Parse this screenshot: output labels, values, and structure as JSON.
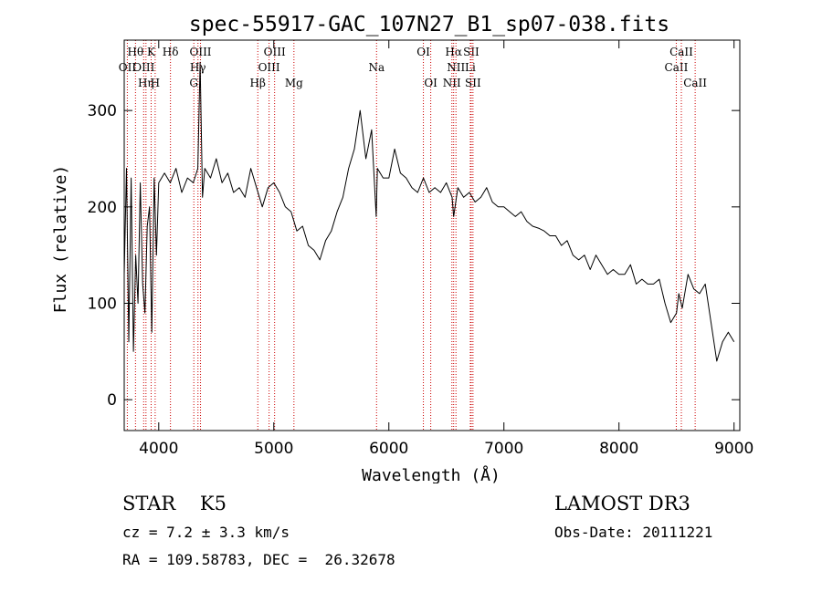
{
  "chart_data": {
    "type": "line",
    "title": "spec-55917-GAC_107N27_B1_sp07-038.fits",
    "xlabel": "Wavelength (Å)",
    "ylabel": "Flux (relative)",
    "xlim": [
      3700,
      9050
    ],
    "ylim": [
      -32,
      373
    ],
    "xticks": [
      4000,
      5000,
      6000,
      7000,
      8000,
      9000
    ],
    "yticks": [
      0,
      100,
      200,
      300
    ],
    "grid": false,
    "series": [
      {
        "x": [
          3700,
          3720,
          3740,
          3760,
          3780,
          3800,
          3820,
          3840,
          3860,
          3880,
          3900,
          3920,
          3940,
          3960,
          3980,
          4000,
          4050,
          4100,
          4150,
          4200,
          4250,
          4300,
          4340,
          4360,
          4380,
          4400,
          4450,
          4500,
          4550,
          4600,
          4650,
          4700,
          4750,
          4800,
          4850,
          4900,
          4950,
          5000,
          5050,
          5100,
          5150,
          5200,
          5250,
          5300,
          5350,
          5400,
          5450,
          5500,
          5550,
          5600,
          5650,
          5700,
          5750,
          5800,
          5850,
          5890,
          5900,
          5950,
          6000,
          6050,
          6100,
          6150,
          6200,
          6250,
          6300,
          6350,
          6400,
          6450,
          6500,
          6550,
          6563,
          6600,
          6650,
          6700,
          6750,
          6800,
          6850,
          6900,
          6950,
          7000,
          7050,
          7100,
          7150,
          7200,
          7250,
          7300,
          7350,
          7400,
          7450,
          7500,
          7550,
          7600,
          7650,
          7700,
          7750,
          7800,
          7850,
          7900,
          7950,
          8000,
          8050,
          8100,
          8150,
          8200,
          8250,
          8300,
          8350,
          8400,
          8450,
          8500,
          8520,
          8550,
          8600,
          8650,
          8700,
          8750,
          8800,
          8850,
          8900,
          8950,
          9000
        ],
        "y": [
          130,
          240,
          60,
          230,
          50,
          150,
          100,
          225,
          120,
          90,
          180,
          200,
          70,
          230,
          150,
          225,
          235,
          225,
          240,
          215,
          230,
          225,
          240,
          350,
          210,
          240,
          230,
          250,
          225,
          235,
          215,
          220,
          210,
          240,
          220,
          200,
          220,
          225,
          215,
          200,
          195,
          175,
          180,
          160,
          155,
          145,
          165,
          175,
          195,
          210,
          240,
          260,
          300,
          250,
          280,
          190,
          240,
          230,
          230,
          260,
          235,
          230,
          220,
          215,
          230,
          215,
          220,
          215,
          225,
          210,
          190,
          220,
          210,
          215,
          205,
          210,
          220,
          205,
          200,
          200,
          195,
          190,
          195,
          185,
          180,
          178,
          175,
          170,
          170,
          160,
          165,
          150,
          145,
          150,
          135,
          150,
          140,
          130,
          135,
          130,
          130,
          140,
          120,
          125,
          120,
          120,
          125,
          100,
          80,
          90,
          110,
          95,
          130,
          115,
          110,
          120,
          80,
          40,
          60,
          70,
          60
        ]
      }
    ],
    "lines": [
      {
        "label": "OII",
        "row": 2,
        "x": 3727
      },
      {
        "label": "Hθ",
        "row": 1,
        "x": 3798
      },
      {
        "label": "OIII",
        "row": 2,
        "x": 3869
      },
      {
        "label": "Hη",
        "row": 3,
        "x": 3889
      },
      {
        "label": "K",
        "row": 1,
        "x": 3934
      },
      {
        "label": "H",
        "row": 3,
        "x": 3969
      },
      {
        "label": "Hδ",
        "row": 1,
        "x": 4102
      },
      {
        "label": "G",
        "row": 3,
        "x": 4305
      },
      {
        "label": "Hγ",
        "row": 2,
        "x": 4341
      },
      {
        "label": "OIII",
        "row": 1,
        "x": 4363
      },
      {
        "label": "Hβ",
        "row": 3,
        "x": 4861
      },
      {
        "label": "OIII",
        "row": 2,
        "x": 4959
      },
      {
        "label": "OIII",
        "row": 1,
        "x": 5007
      },
      {
        "label": "Mg",
        "row": 3,
        "x": 5175
      },
      {
        "label": "Na",
        "row": 2,
        "x": 5893
      },
      {
        "label": "OI",
        "row": 1,
        "x": 6300
      },
      {
        "label": "OI",
        "row": 3,
        "x": 6364
      },
      {
        "label": "NII",
        "row": 3,
        "x": 6548
      },
      {
        "label": "Hα",
        "row": 1,
        "x": 6563
      },
      {
        "label": "NII",
        "row": 2,
        "x": 6583
      },
      {
        "label": "SII",
        "row": 1,
        "x": 6716
      },
      {
        "label": "Li",
        "row": 2,
        "x": 6708
      },
      {
        "label": "SII",
        "row": 3,
        "x": 6731
      },
      {
        "label": "CaII",
        "row": 2,
        "x": 8498
      },
      {
        "label": "CaII",
        "row": 1,
        "x": 8542
      },
      {
        "label": "CaII",
        "row": 3,
        "x": 8662
      }
    ]
  },
  "footer": {
    "classification": "STAR    K5",
    "survey": "LAMOST DR3",
    "cz": "cz = 7.2 ± 3.3 km/s",
    "obs_date": "Obs-Date: 20111221",
    "coords": "RA = 109.58783, DEC =  26.32678"
  },
  "colors": {
    "line_marker": "#cc0000",
    "spectrum": "#000000"
  }
}
